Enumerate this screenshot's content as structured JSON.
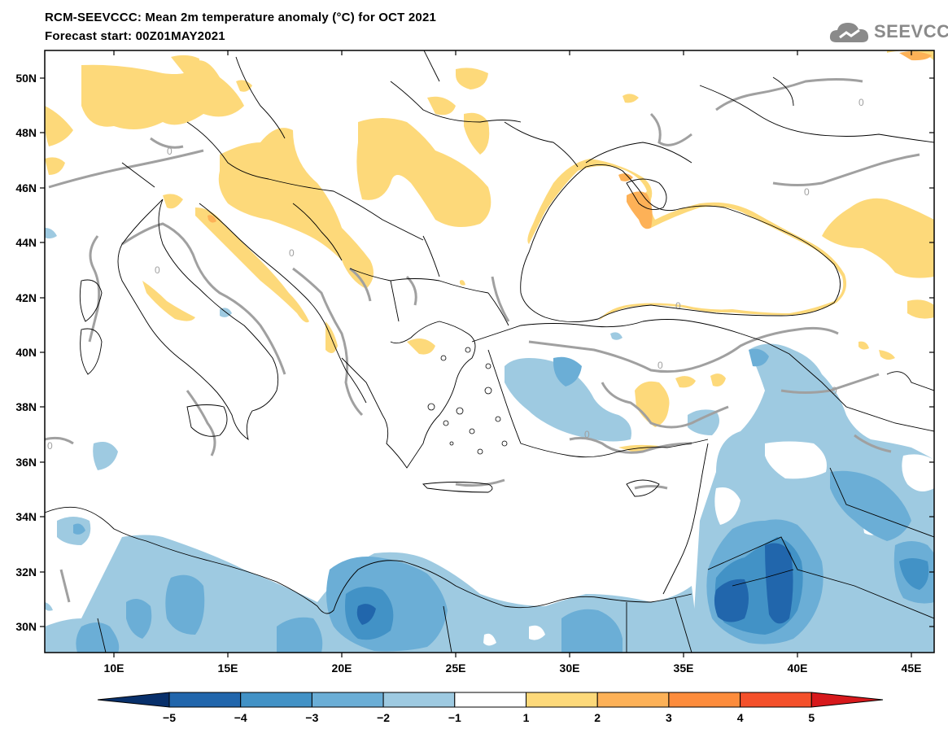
{
  "header": {
    "title": "RCM-SEEVCCC: Mean 2m temperature anomaly (°C) for OCT 2021",
    "subtitle": "Forecast start: 00Z01MAY2021",
    "logo_text": "SEEVCCC",
    "logo_icon": "cloud-icon"
  },
  "map": {
    "lat_labels": [
      "50N",
      "48N",
      "46N",
      "44N",
      "42N",
      "40N",
      "38N",
      "36N",
      "34N",
      "32N",
      "30N"
    ],
    "lon_labels": [
      "10E",
      "15E",
      "20E",
      "25E",
      "30E",
      "35E",
      "40E",
      "45E"
    ],
    "contour_label": "0",
    "colors": {
      "ocean": "#ffffff",
      "border": "#000000",
      "contour": "#a0a0a0",
      "warm_1_2": "#fdd97a",
      "warm_2_3": "#fdb157",
      "cold_m1_m2": "#9ecae1",
      "cold_m2_m3": "#6baed6",
      "cold_m3_m4": "#4292c6",
      "cold_m4_m5": "#2166ac"
    }
  },
  "colorbar": {
    "tick_labels": [
      "−5",
      "−4",
      "−3",
      "−2",
      "−1",
      "1",
      "2",
      "3",
      "4",
      "5"
    ],
    "colors": [
      "#08306b",
      "#2166ac",
      "#4292c6",
      "#6baed6",
      "#9ecae1",
      "#ffffff",
      "#fdd97a",
      "#fdb157",
      "#fd8c3c",
      "#f4502a",
      "#d7191c"
    ]
  }
}
